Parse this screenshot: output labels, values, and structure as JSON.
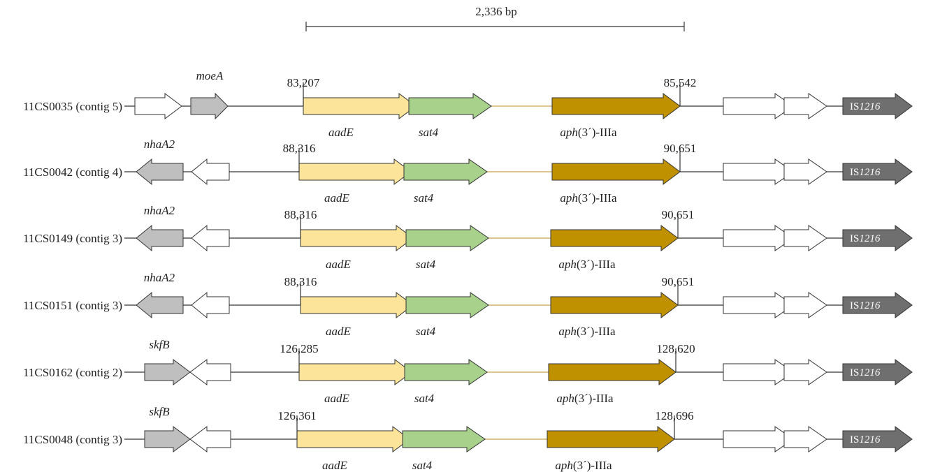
{
  "scale_bar": {
    "label": "2,336 bp"
  },
  "gene_names": {
    "aadE": "aadE",
    "sat4": "sat4",
    "aph_italic": "aph",
    "aph_suffix": "(3´)-IIIa",
    "is_prefix": "IS",
    "is_number": "1216"
  },
  "colors": {
    "aadE": "#fde49b",
    "sat4": "#a8d18c",
    "aph": "#bf9000",
    "flank_gray": "#bfbfbf",
    "is_gray": "#6f6f6f",
    "white_orf": "#ffffff",
    "spacer_line": "#c9a44a"
  },
  "rows": [
    {
      "label": "11CS0035 (contig 5)",
      "left_gene": "moeA",
      "start": "83,207",
      "end": "85,542"
    },
    {
      "label": "11CS0042 (contig 4)",
      "left_gene": "nhaA2",
      "start": "88,316",
      "end": "90,651"
    },
    {
      "label": "11CS0149 (contig 3)",
      "left_gene": "nhaA2",
      "start": "88,316",
      "end": "90,651"
    },
    {
      "label": "11CS0151 (contig 3)",
      "left_gene": "nhaA2",
      "start": "88,316",
      "end": "90,651"
    },
    {
      "label": "11CS0162 (contig 2)",
      "left_gene": "skfB",
      "start": "126,285",
      "end": "128,620"
    },
    {
      "label": "11CS0048 (contig 3)",
      "left_gene": "skfB",
      "start": "126,361",
      "end": "128,696"
    }
  ]
}
